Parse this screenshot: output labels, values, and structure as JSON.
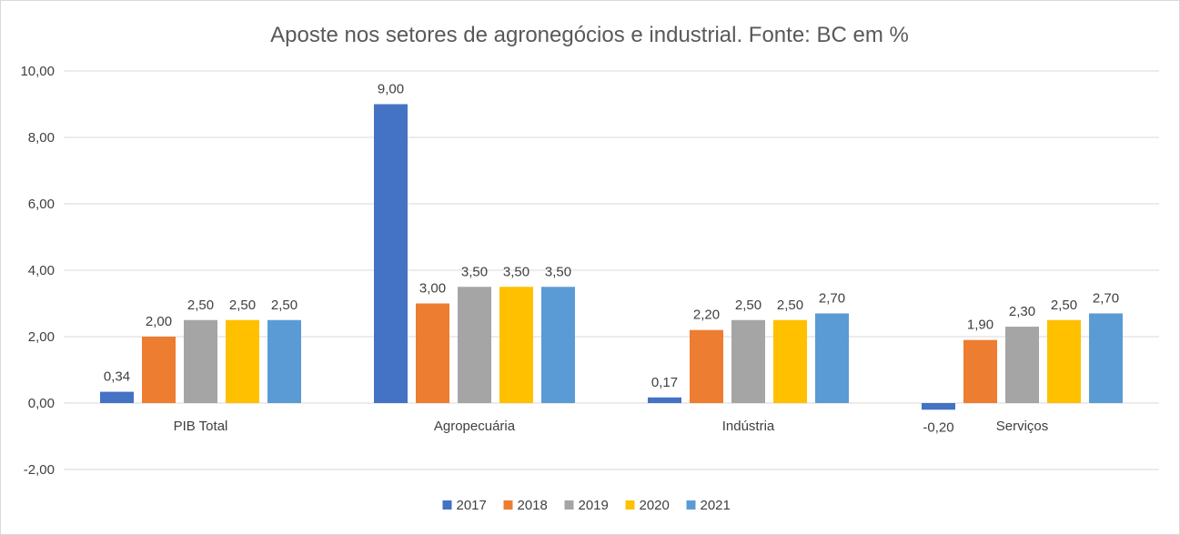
{
  "chart_data": {
    "type": "bar",
    "title": "Aposte nos setores de agronegócios e industrial. Fonte: BC em %",
    "categories": [
      "PIB Total",
      "Agropecuária",
      "Indústria",
      "Serviços"
    ],
    "series": [
      {
        "name": "2017",
        "color": "#4472c4",
        "values": [
          0.34,
          9.0,
          0.17,
          -0.2
        ],
        "labels": [
          "0,34",
          "9,00",
          "0,17",
          "-0,20"
        ]
      },
      {
        "name": "2018",
        "color": "#ed7d31",
        "values": [
          2.0,
          3.0,
          2.2,
          1.9
        ],
        "labels": [
          "2,00",
          "3,00",
          "2,20",
          "1,90"
        ]
      },
      {
        "name": "2019",
        "color": "#a5a5a5",
        "values": [
          2.5,
          3.5,
          2.5,
          2.3
        ],
        "labels": [
          "2,50",
          "3,50",
          "2,50",
          "2,30"
        ]
      },
      {
        "name": "2020",
        "color": "#ffc000",
        "values": [
          2.5,
          3.5,
          2.5,
          2.5
        ],
        "labels": [
          "2,50",
          "3,50",
          "2,50",
          "2,50"
        ]
      },
      {
        "name": "2021",
        "color": "#5b9bd5",
        "values": [
          2.5,
          3.5,
          2.7,
          2.7
        ],
        "labels": [
          "2,50",
          "3,50",
          "2,70",
          "2,70"
        ]
      }
    ],
    "ylim": [
      -2,
      10
    ],
    "yticks": [
      -2,
      0,
      2,
      4,
      6,
      8,
      10
    ],
    "ytick_labels": [
      "-2,00",
      "0,00",
      "2,00",
      "4,00",
      "6,00",
      "8,00",
      "10,00"
    ],
    "grid": true,
    "legend": "bottom"
  }
}
